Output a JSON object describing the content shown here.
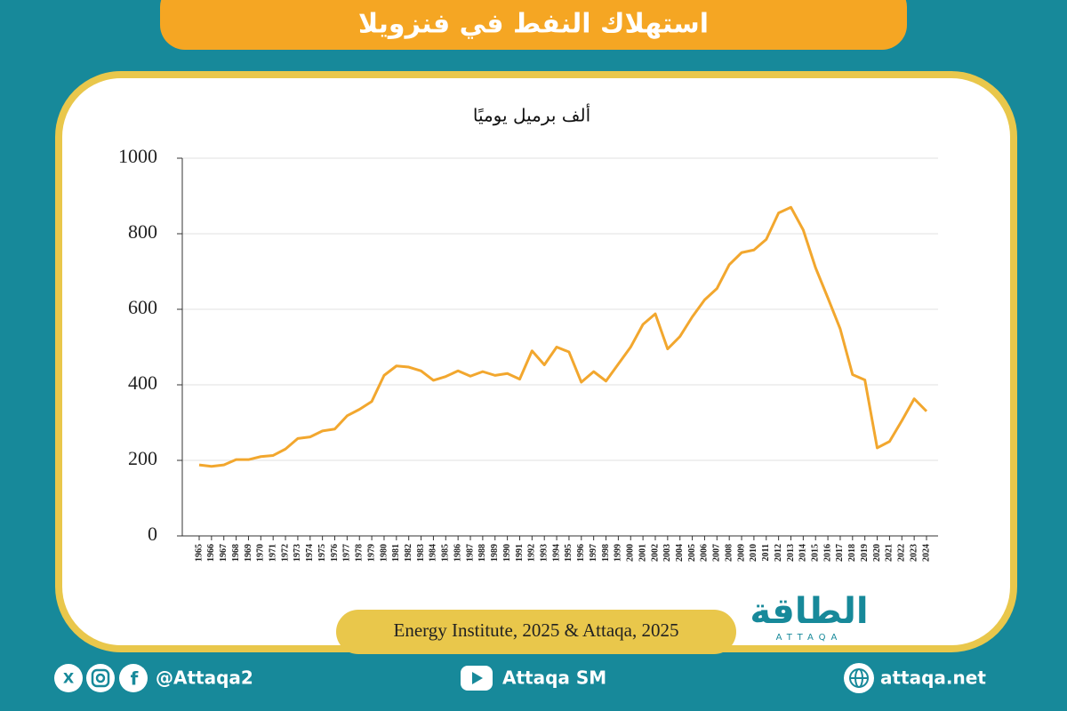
{
  "chart_data": {
    "type": "line",
    "title": "استهلاك النفط في فنزويلا",
    "subtitle": "ألف برميل يوميًا",
    "source": "Energy Institute, 2025 & Attaqa, 2025",
    "x": [
      1965,
      1966,
      1967,
      1968,
      1969,
      1970,
      1971,
      1972,
      1973,
      1974,
      1975,
      1976,
      1977,
      1978,
      1979,
      1980,
      1981,
      1982,
      1983,
      1984,
      1985,
      1986,
      1987,
      1988,
      1989,
      1990,
      1991,
      1992,
      1993,
      1994,
      1995,
      1996,
      1997,
      1998,
      1999,
      2000,
      2001,
      2002,
      2003,
      2004,
      2005,
      2006,
      2007,
      2008,
      2009,
      2010,
      2011,
      2012,
      2013,
      2014,
      2015,
      2016,
      2017,
      2018,
      2019,
      2020,
      2021,
      2022,
      2023,
      2024
    ],
    "values": [
      188,
      184,
      188,
      202,
      202,
      210,
      213,
      230,
      258,
      262,
      278,
      283,
      318,
      335,
      356,
      425,
      450,
      447,
      437,
      412,
      422,
      437,
      423,
      435,
      425,
      430,
      415,
      490,
      453,
      500,
      487,
      407,
      435,
      410,
      455,
      500,
      560,
      588,
      495,
      528,
      580,
      625,
      655,
      718,
      750,
      757,
      785,
      855,
      870,
      810,
      710,
      630,
      548,
      427,
      413,
      233,
      250,
      305,
      363,
      330
    ],
    "color": "#f2a72e",
    "xlim": [
      1965,
      2024
    ],
    "ylim": [
      0,
      1000
    ],
    "yticks": [
      0,
      200,
      400,
      600,
      800,
      1000
    ],
    "grid": true
  },
  "logo": {
    "name": "الطاقة",
    "latin": "ATTAQA"
  },
  "footer": {
    "social": "@Attaqa2",
    "youtube": "Attaqa SM",
    "website": "attaqa.net"
  }
}
